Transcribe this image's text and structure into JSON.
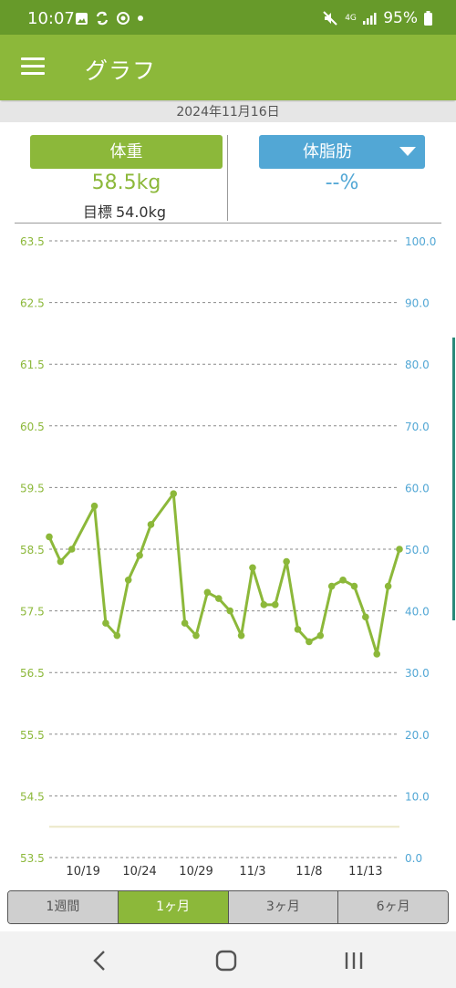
{
  "status_bar": {
    "time": "10:07",
    "network": "4G",
    "battery": "95%",
    "icons_left": [
      "image-icon",
      "sync-icon",
      "record-icon",
      "dot-icon"
    ],
    "icons_right": [
      "mute-icon",
      "network-icon",
      "signal-icon",
      "battery-icon"
    ]
  },
  "app_bar": {
    "title": "グラフ",
    "menu_icon": "menu-icon"
  },
  "date": "2024年11月16日",
  "weight": {
    "label": "体重",
    "value": "58.5kg",
    "goal_label": "目標",
    "goal_value": "54.0kg"
  },
  "body_fat": {
    "label": "体脂肪",
    "value": "--%"
  },
  "colors": {
    "primary": "#8cb83a",
    "status_bar": "#679a2a",
    "blue": "#52a7d5",
    "teal": "#2a8a7a"
  },
  "chart_data": {
    "type": "line",
    "x_tick_labels": [
      "10/19",
      "10/24",
      "10/29",
      "11/3",
      "11/8",
      "11/13"
    ],
    "x": [
      "10/16",
      "10/17",
      "10/18",
      "10/19",
      "10/20",
      "10/21",
      "10/22",
      "10/23",
      "10/24",
      "10/25",
      "10/26",
      "10/27",
      "10/28",
      "10/29",
      "10/30",
      "10/31",
      "11/1",
      "11/2",
      "11/3",
      "11/4",
      "11/5",
      "11/6",
      "11/7",
      "11/8",
      "11/9",
      "11/10",
      "11/11",
      "11/12",
      "11/13",
      "11/14",
      "11/15",
      "11/16"
    ],
    "series": [
      {
        "axis": "left",
        "color": "#8cb83a",
        "values": [
          58.7,
          58.3,
          58.5,
          null,
          59.2,
          57.3,
          57.1,
          58.0,
          58.4,
          58.9,
          null,
          59.4,
          57.3,
          57.1,
          57.8,
          57.7,
          57.5,
          57.1,
          58.2,
          57.6,
          57.6,
          58.3,
          57.2,
          57.0,
          57.1,
          57.9,
          58.0,
          57.9,
          57.4,
          56.8,
          57.9,
          58.5
        ]
      }
    ],
    "left_axis": {
      "ticks": [
        "63.5",
        "62.5",
        "61.5",
        "60.5",
        "59.5",
        "58.5",
        "57.5",
        "56.5",
        "55.5",
        "54.5",
        "53.5"
      ],
      "range": [
        53.5,
        63.5
      ],
      "color": "#8cb83a"
    },
    "right_axis": {
      "ticks": [
        "100.0",
        "90.0",
        "80.0",
        "70.0",
        "60.0",
        "50.0",
        "40.0",
        "30.0",
        "20.0",
        "10.0",
        "0.0"
      ],
      "range": [
        0,
        100
      ],
      "color": "#52a7d5"
    },
    "goal_line": {
      "value": 54.0,
      "color": "#ece8c8"
    },
    "grid": true
  },
  "range_tabs": [
    {
      "label": "1週間",
      "active": false
    },
    {
      "label": "1ヶ月",
      "active": true
    },
    {
      "label": "3ヶ月",
      "active": false
    },
    {
      "label": "6ヶ月",
      "active": false
    }
  ],
  "nav_bar": {
    "back_icon": "back-icon",
    "home_icon": "home-icon",
    "recents_icon": "recents-icon"
  }
}
